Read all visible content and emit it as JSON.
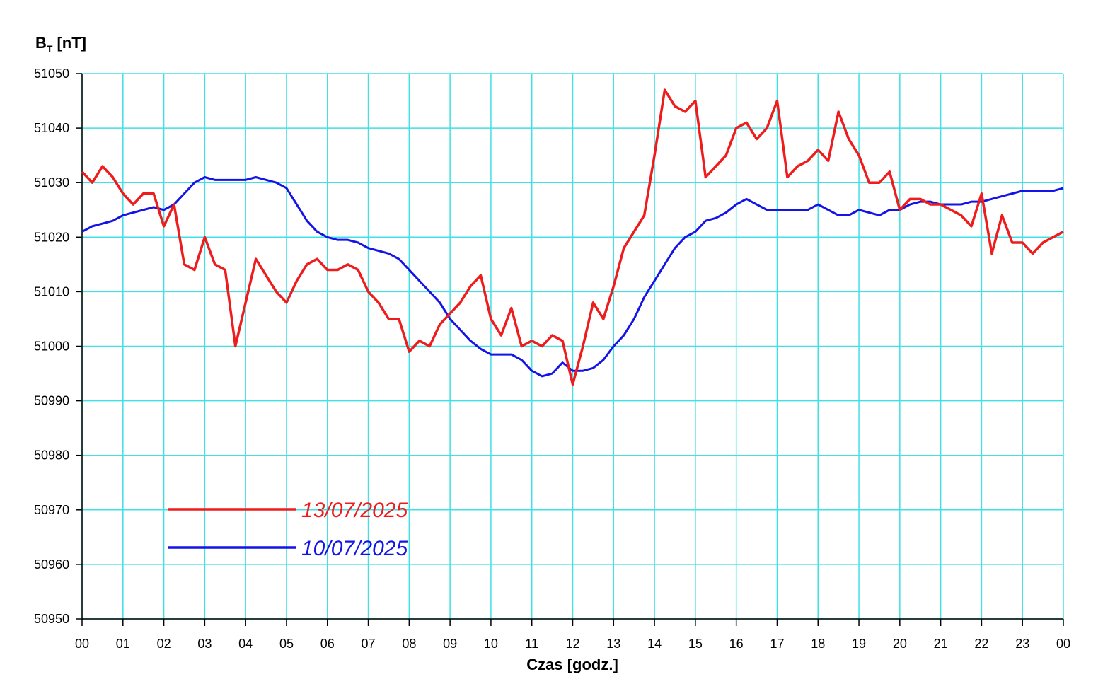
{
  "chart_data": {
    "type": "line",
    "ylabel": {
      "main": "B",
      "sub": "T",
      "unit": "[nT]"
    },
    "xlabel": "Czas [godz.]",
    "xlim": [
      0,
      24
    ],
    "xticks": [
      {
        "value": 0,
        "label": "00"
      },
      {
        "value": 1,
        "label": "01"
      },
      {
        "value": 2,
        "label": "02"
      },
      {
        "value": 3,
        "label": "03"
      },
      {
        "value": 4,
        "label": "04"
      },
      {
        "value": 5,
        "label": "05"
      },
      {
        "value": 6,
        "label": "06"
      },
      {
        "value": 7,
        "label": "07"
      },
      {
        "value": 8,
        "label": "08"
      },
      {
        "value": 9,
        "label": "09"
      },
      {
        "value": 10,
        "label": "10"
      },
      {
        "value": 11,
        "label": "11"
      },
      {
        "value": 12,
        "label": "12"
      },
      {
        "value": 13,
        "label": "13"
      },
      {
        "value": 14,
        "label": "14"
      },
      {
        "value": 15,
        "label": "15"
      },
      {
        "value": 16,
        "label": "16"
      },
      {
        "value": 17,
        "label": "17"
      },
      {
        "value": 18,
        "label": "18"
      },
      {
        "value": 19,
        "label": "19"
      },
      {
        "value": 20,
        "label": "20"
      },
      {
        "value": 21,
        "label": "21"
      },
      {
        "value": 22,
        "label": "22"
      },
      {
        "value": 23,
        "label": "23"
      },
      {
        "value": 24,
        "label": "00"
      }
    ],
    "ylim": [
      50950,
      51050
    ],
    "yticks": [
      50950,
      50960,
      50970,
      50980,
      50990,
      51000,
      51010,
      51020,
      51030,
      51040,
      51050
    ],
    "grid": true,
    "grid_color": "#3fe0e6",
    "x": [
      0,
      0.25,
      0.5,
      0.75,
      1,
      1.25,
      1.5,
      1.75,
      2,
      2.25,
      2.5,
      2.75,
      3,
      3.25,
      3.5,
      3.75,
      4,
      4.25,
      4.5,
      4.75,
      5,
      5.25,
      5.5,
      5.75,
      6,
      6.25,
      6.5,
      6.75,
      7,
      7.25,
      7.5,
      7.75,
      8,
      8.25,
      8.5,
      8.75,
      9,
      9.25,
      9.5,
      9.75,
      10,
      10.25,
      10.5,
      10.75,
      11,
      11.25,
      11.5,
      11.75,
      12,
      12.25,
      12.5,
      12.75,
      13,
      13.25,
      13.5,
      13.75,
      14,
      14.25,
      14.5,
      14.75,
      15,
      15.25,
      15.5,
      15.75,
      16,
      16.25,
      16.5,
      16.75,
      17,
      17.25,
      17.5,
      17.75,
      18,
      18.25,
      18.5,
      18.75,
      19,
      19.25,
      19.5,
      19.75,
      20,
      20.25,
      20.5,
      20.75,
      21,
      21.25,
      21.5,
      21.75,
      22,
      22.25,
      22.5,
      22.75,
      23,
      23.25,
      23.5,
      23.75,
      24
    ],
    "series": [
      {
        "name": "13/07/2025",
        "color": "#ee1c1c",
        "values": [
          51032,
          51030,
          51033,
          51031,
          51028,
          51026,
          51028,
          51028,
          51022,
          51026,
          51015,
          51014,
          51020,
          51015,
          51014,
          51000,
          51008,
          51016,
          51013,
          51010,
          51008,
          51012,
          51015,
          51016,
          51014,
          51014,
          51015,
          51014,
          51010,
          51008,
          51005,
          51005,
          50999,
          51001,
          51000,
          51004,
          51006,
          51008,
          51011,
          51013,
          51005,
          51002,
          51007,
          51000,
          51001,
          51000,
          51002,
          51001,
          50993,
          51000,
          51008,
          51005,
          51011,
          51018,
          51021,
          51024,
          51035,
          51047,
          51044,
          51043,
          51045,
          51031,
          51033,
          51035,
          51040,
          51041,
          51038,
          51040,
          51045,
          51031,
          51033,
          51034,
          51036,
          51034,
          51043,
          51038,
          51035,
          51030,
          51030,
          51032,
          51025,
          51027,
          51027,
          51026,
          51026,
          51025,
          51024,
          51022,
          51028,
          51017,
          51024,
          51019,
          51019,
          51017,
          51019,
          51020,
          51021
        ]
      },
      {
        "name": "10/07/2025",
        "color": "#1414e6",
        "values": [
          51021,
          51022,
          51022.5,
          51023,
          51024,
          51024.5,
          51025,
          51025.5,
          51025,
          51026,
          51028,
          51030,
          51031,
          51030.5,
          51030.5,
          51030.5,
          51030.5,
          51031,
          51030.5,
          51030,
          51029,
          51026,
          51023,
          51021,
          51020,
          51019.5,
          51019.5,
          51019,
          51018,
          51017.5,
          51017,
          51016,
          51014,
          51012,
          51010,
          51008,
          51005,
          51003,
          51001,
          50999.5,
          50998.5,
          50998.5,
          50998.5,
          50997.5,
          50995.5,
          50994.5,
          50995,
          50997,
          50995.5,
          50995.5,
          50996,
          50997.5,
          51000,
          51002,
          51005,
          51009,
          51012,
          51015,
          51018,
          51020,
          51021,
          51023,
          51023.5,
          51024.5,
          51026,
          51027,
          51026,
          51025,
          51025,
          51025,
          51025,
          51025,
          51026,
          51025,
          51024,
          51024,
          51025,
          51024.5,
          51024,
          51025,
          51025,
          51026,
          51026.5,
          51026.5,
          51026,
          51026,
          51026,
          51026.5,
          51026.5,
          51027,
          51027.5,
          51028,
          51028.5,
          51028.5,
          51028.5,
          51028.5,
          51029
        ]
      }
    ],
    "legend": "lower-left"
  }
}
